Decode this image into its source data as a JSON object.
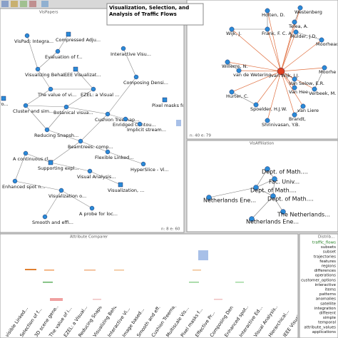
{
  "tooltip": "Visualization, Selection, and Analysis of Traffic Flows",
  "papers": {
    "title": "VisPapers",
    "status": "n: 8 e: 60",
    "nodes": [
      "Compressed Adju...",
      "VisPad: Integra...",
      "Evaluation of f...",
      "Interactive Visu...",
      "Visualizing Beha...",
      "IEEE Visualizat...",
      "Composing Densi...",
      "The value of vi...",
      "EZEL: a Visual ...",
      "Botanical visua...",
      "Pixel masks for...",
      "Cluster and sim...",
      "Cushion Treemap...",
      "Enridged Contou...",
      "Implicit stream...",
      "of Pro...",
      "Reducing Snapsh...",
      "Beamtrees: comp...",
      "A continuous cl...",
      "Flexible Linked...",
      "Supporting expl...",
      "HyperSlice - Vi...",
      "Visual Analysis...",
      "Enhanced spot n...",
      "Visualization o...",
      "Visualization, ...",
      "A probe for loc...",
      "Smooth and effi..."
    ]
  },
  "authors": {
    "status": "n: 40 e: 79",
    "nodes": [
      "Holten, D.",
      "Westenberg",
      "Telea, A.",
      "Frank, F. C. A.",
      "Mulder, J.D.",
      "Moorhead",
      "Wijk, J.",
      "Willems, N.",
      "van de Wetering",
      "van Wijk, J.J.",
      "Van Selow, E.R.",
      "Van Hee",
      "Hurter, C.",
      "Moorhe",
      "Spoelder, H.J.W.",
      "van Liere",
      "Shrinivasan, Y.B.",
      "Verbeek, M.",
      "Brandt,"
    ]
  },
  "affiliations": {
    "title": "VisAffiliation",
    "nodes": [
      "Dept. of Math....",
      "Fac. Univ...",
      "Dept. of Math....",
      "Dept. of Math....",
      "Netherlands Ene...",
      "The Netherlands...",
      "Netherlands Ene..."
    ]
  },
  "comparer": {
    "title": "Attribute Comparer",
    "labels": [
      "visible Linked...",
      "Selection of f...",
      "3D scene gene...",
      "The value of i...",
      "EZEL: a Visual...",
      "Reducing Snapsh...",
      "Visualizing Beha...",
      "Interactive Vi...",
      "Image based...",
      "Smooth and eff...",
      "Cushion Treemap...",
      "Multiscale Vis...",
      "Pixel masks f...",
      "Effective Pr...",
      "Composing Den...",
      "Enhanced spot...",
      "Interactive Ed...",
      "Visual Analysis...",
      "Hierarchical...",
      "IEEE Visualizat..."
    ]
  },
  "distribution": {
    "title": "Distrib...",
    "items": [
      "traffic_flows",
      "subsets",
      "subset",
      "trajectories",
      "features",
      "regions",
      "differences",
      "operations",
      "customer_options",
      "interactive",
      "items",
      "patterns",
      "anomalies",
      "satellite",
      "integration",
      "different",
      "simple",
      "temporal",
      "attribute_values",
      "applications"
    ]
  }
}
